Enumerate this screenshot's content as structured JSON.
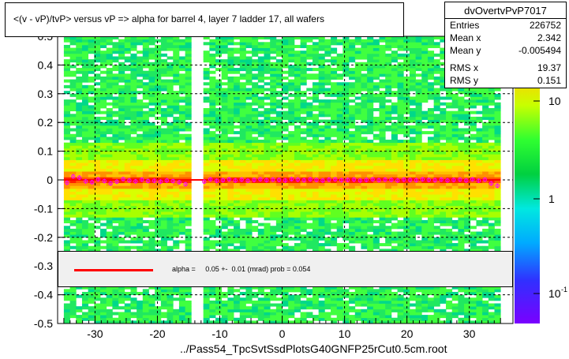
{
  "chart_data": {
    "type": "heatmap",
    "title": "<(v - vP)/tvP> versus   vP => alpha for barrel 4, layer 7 ladder 17, all wafers",
    "xlim": [
      -36,
      37
    ],
    "ylim": [
      -0.5,
      0.5
    ],
    "x_ticks": [
      -30,
      -20,
      -10,
      0,
      10,
      20,
      30
    ],
    "x_tick_labels": [
      "-30",
      "-20",
      "-10",
      "0",
      "10",
      "20",
      "30"
    ],
    "y_ticks": [
      -0.5,
      -0.4,
      -0.3,
      -0.2,
      -0.1,
      0,
      0.1,
      0.2,
      0.3,
      0.4,
      0.5
    ],
    "y_tick_labels": [
      "-0.5",
      "-0.4",
      "-0.3",
      "-0.2",
      "-0.1",
      "0",
      "0.1",
      "0.2",
      "0.3",
      "0.4",
      "0.5"
    ],
    "grid": true,
    "colorbar": {
      "scale": "log",
      "tick_labels": [
        "10",
        "1",
        "10"
      ],
      "tick_exponent_label": "-1"
    },
    "fit_line_color": "#ff0000",
    "profile_color": "#ff00ff",
    "profile_x": [
      -34.5,
      -33.5,
      -32.5,
      -31.5,
      -30.5,
      -29.5,
      -28.5,
      -27.5,
      -26.5,
      -25.5,
      -24.5,
      -23.5,
      -22.5,
      -21.5,
      -20.5,
      -19.5,
      -18.5,
      -17.5,
      -16.5,
      -15.5,
      -12.5,
      -11.5,
      -10.5,
      -9.5,
      -8.5,
      -7.5,
      -6.5,
      -5.5,
      -4.5,
      -3.5,
      -2.5,
      -1.5,
      -0.5,
      0.5,
      1.5,
      2.5,
      3.5,
      4.5,
      5.5,
      6.5,
      7.5,
      8.5,
      9.5,
      10.5,
      11.5,
      12.5,
      13.5,
      14.5,
      15.5,
      16.5,
      17.5,
      18.5,
      19.5,
      20.5,
      21.5,
      22.5,
      23.5,
      24.5,
      25.5,
      26.5,
      27.5,
      28.5,
      29.5,
      30.5,
      31.5,
      32.5,
      33.5,
      34.5
    ],
    "profile_y": [
      -0.01,
      0.012,
      0.008,
      -0.005,
      -0.008,
      0.002,
      -0.004,
      -0.012,
      -0.006,
      0.003,
      -0.002,
      -0.005,
      0.001,
      -0.004,
      -0.003,
      -0.006,
      -0.002,
      -0.004,
      -0.008,
      -0.015,
      -0.006,
      0.002,
      -0.003,
      -0.001,
      0.002,
      -0.002,
      0.001,
      -0.003,
      0.0,
      0.002,
      -0.001,
      0.001,
      0.0,
      -0.002,
      0.003,
      0.001,
      -0.001,
      0.002,
      0.0,
      -0.002,
      0.001,
      0.002,
      -0.001,
      0.0,
      0.001,
      -0.002,
      0.0,
      0.002,
      -0.001,
      0.001,
      0.0,
      -0.002,
      0.001,
      0.0,
      -0.001,
      0.002,
      0.0,
      -0.001,
      0.001,
      -0.002,
      0.0,
      0.001,
      -0.002,
      0.002,
      -0.003,
      0.001,
      -0.012,
      -0.02
    ],
    "fit_y": 0.0
  },
  "stats": {
    "name": "dvOvertvPvP7017",
    "rows": [
      {
        "label": "Entries",
        "value": "226752"
      },
      {
        "label": "Mean x",
        "value": "2.342"
      },
      {
        "label": "Mean y",
        "value": "-0.005494"
      },
      {
        "label": "RMS x",
        "value": "19.37"
      },
      {
        "label": "RMS y",
        "value": "0.151"
      }
    ]
  },
  "legend": {
    "text": "alpha =     0.05 +-  0.01 (mrad) prob = 0.054"
  },
  "footer": {
    "filename": "../Pass54_TpcSvtSsdPlotsG40GNFP25rCut0.5cm.root"
  }
}
